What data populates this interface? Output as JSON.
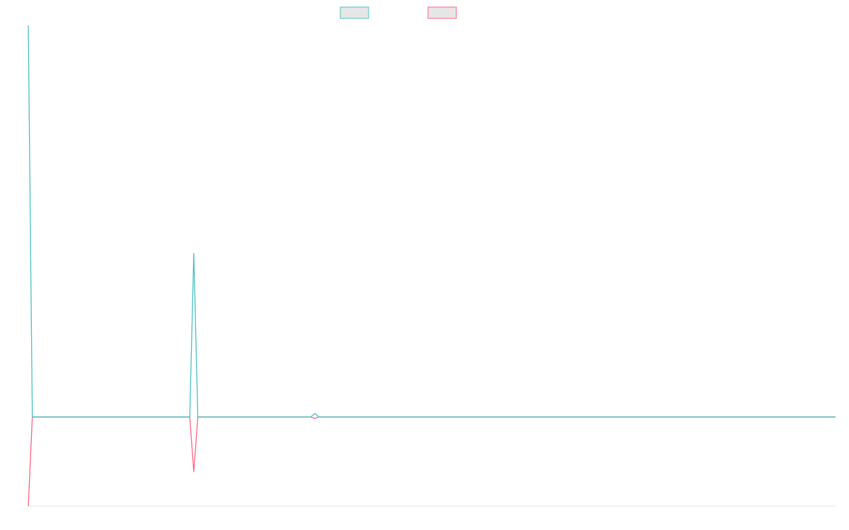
{
  "chart_data": {
    "type": "line",
    "x": [
      0,
      1,
      2,
      3,
      4,
      5,
      6,
      7,
      8,
      9,
      10,
      11,
      12,
      13,
      14,
      15,
      16,
      17,
      18,
      19,
      20,
      21,
      22,
      23,
      24,
      25,
      26,
      27,
      28,
      29,
      30,
      31,
      32,
      33,
      34,
      35,
      36,
      37,
      38,
      39,
      40,
      41,
      42,
      43,
      44,
      45,
      46,
      47,
      48,
      49,
      50,
      51,
      52,
      53,
      54,
      55,
      56,
      57,
      58,
      59,
      60,
      61,
      62,
      63,
      64,
      65,
      66,
      67,
      68,
      69,
      70,
      71,
      72,
      73,
      74,
      75,
      76,
      77,
      78,
      79,
      80,
      81,
      82,
      83,
      84,
      85,
      86,
      87,
      88,
      89,
      90,
      91,
      92,
      93,
      94,
      95,
      96,
      97,
      98,
      99,
      100,
      101,
      102,
      103,
      104,
      105,
      106,
      107,
      108,
      109,
      110,
      111,
      112,
      113,
      114,
      115,
      116,
      117,
      118,
      119,
      120,
      121,
      122,
      123,
      124,
      125,
      126,
      127,
      128,
      129,
      130,
      131,
      132,
      133,
      134,
      135,
      136,
      137,
      138,
      139,
      140,
      141,
      142,
      143,
      144,
      145,
      146,
      147,
      148,
      149,
      150,
      151,
      152,
      153,
      154,
      155,
      156,
      157,
      158,
      159,
      160,
      161,
      162,
      163,
      164,
      165,
      166,
      167,
      168,
      169,
      170,
      171,
      172,
      173,
      174,
      175,
      176,
      177,
      178,
      179,
      180,
      181,
      182,
      183,
      184,
      185,
      186,
      187,
      188,
      189,
      190,
      191,
      192,
      193,
      194,
      195,
      196,
      197,
      198,
      199,
      200
    ],
    "series": [
      {
        "values": [
          55,
          0,
          0,
          0,
          0,
          0,
          0,
          0,
          0,
          0,
          0,
          0,
          0,
          0,
          0,
          0,
          0,
          0,
          0,
          0,
          0,
          0,
          0,
          0,
          0,
          0,
          0,
          0,
          0,
          0,
          0,
          0,
          0,
          0,
          0,
          0,
          0,
          0,
          0,
          0,
          0,
          23,
          0,
          0,
          0,
          0,
          0,
          0,
          0,
          0,
          0,
          0,
          0,
          0,
          0,
          0,
          0,
          0,
          0,
          0,
          0,
          0,
          0,
          0,
          0,
          0,
          0,
          0,
          0,
          0,
          0,
          0.5,
          0,
          0,
          0,
          0,
          0,
          0,
          0,
          0,
          0,
          0,
          0,
          0,
          0,
          0,
          0,
          0,
          0,
          0,
          0,
          0,
          0,
          0,
          0,
          0,
          0,
          0,
          0,
          0,
          0,
          0,
          0,
          0,
          0,
          0,
          0,
          0,
          0,
          0,
          0,
          0,
          0,
          0,
          0,
          0,
          0,
          0,
          0,
          0,
          0,
          0,
          0,
          0,
          0,
          0,
          0,
          0,
          0,
          0,
          0,
          0,
          0,
          0,
          0,
          0,
          0,
          0,
          0,
          0,
          0,
          0,
          0,
          0,
          0,
          0,
          0,
          0,
          0,
          0,
          0,
          0,
          0,
          0,
          0,
          0,
          0,
          0,
          0,
          0,
          0,
          0,
          0,
          0,
          0,
          0,
          0,
          0,
          0,
          0,
          0,
          0,
          0,
          0,
          0,
          0,
          0,
          0,
          0,
          0,
          0,
          0,
          0,
          0,
          0,
          0,
          0,
          0,
          0,
          0,
          0,
          0,
          0,
          0,
          0,
          0,
          0,
          0,
          0,
          0,
          0
        ]
      },
      {
        "values": [
          -12.5,
          0,
          0,
          0,
          0,
          0,
          0,
          0,
          0,
          0,
          0,
          0,
          0,
          0,
          0,
          0,
          0,
          0,
          0,
          0,
          0,
          0,
          0,
          0,
          0,
          0,
          0,
          0,
          0,
          0,
          0,
          0,
          0,
          0,
          0,
          0,
          0,
          0,
          0,
          0,
          0,
          -7.7,
          0,
          0,
          0,
          0,
          0,
          0,
          0,
          0,
          0,
          0,
          0,
          0,
          0,
          0,
          0,
          0,
          0,
          0,
          0,
          0,
          0,
          0,
          0,
          0,
          0,
          0,
          0,
          0,
          0,
          -0.2,
          0,
          0,
          0,
          0,
          0,
          0,
          0,
          0,
          0,
          0,
          0,
          0,
          0,
          0,
          0,
          0,
          0,
          0,
          0,
          0,
          0,
          0,
          0,
          0,
          0,
          0,
          0,
          0,
          0,
          0,
          0,
          0,
          0,
          0,
          0,
          0,
          0,
          0,
          0,
          0,
          0,
          0,
          0,
          0,
          0,
          0,
          0,
          0,
          0,
          0,
          0,
          0,
          0,
          0,
          0,
          0,
          0,
          0,
          0,
          0,
          0,
          0,
          0,
          0,
          0,
          0,
          0,
          0,
          0,
          0,
          0,
          0,
          0,
          0,
          0,
          0,
          0,
          0,
          0,
          0,
          0,
          0,
          0,
          0,
          0,
          0,
          0,
          0,
          0,
          0,
          0,
          0,
          0,
          0,
          0,
          0,
          0,
          0,
          0,
          0,
          0,
          0,
          0,
          0,
          0,
          0,
          0,
          0,
          0,
          0,
          0,
          0,
          0,
          0,
          0,
          0,
          0,
          0,
          0,
          0,
          0,
          0,
          0,
          0,
          0,
          0,
          0,
          0,
          0
        ]
      }
    ],
    "xlim": [
      0,
      200
    ],
    "ylim": [
      -12.5,
      55
    ],
    "grid": false,
    "legend_position": "top",
    "colors": [
      "#4bc0c0",
      "#ff6384"
    ],
    "fill_color": "#e6e6e6",
    "axis_color": "#e5e5e5"
  }
}
